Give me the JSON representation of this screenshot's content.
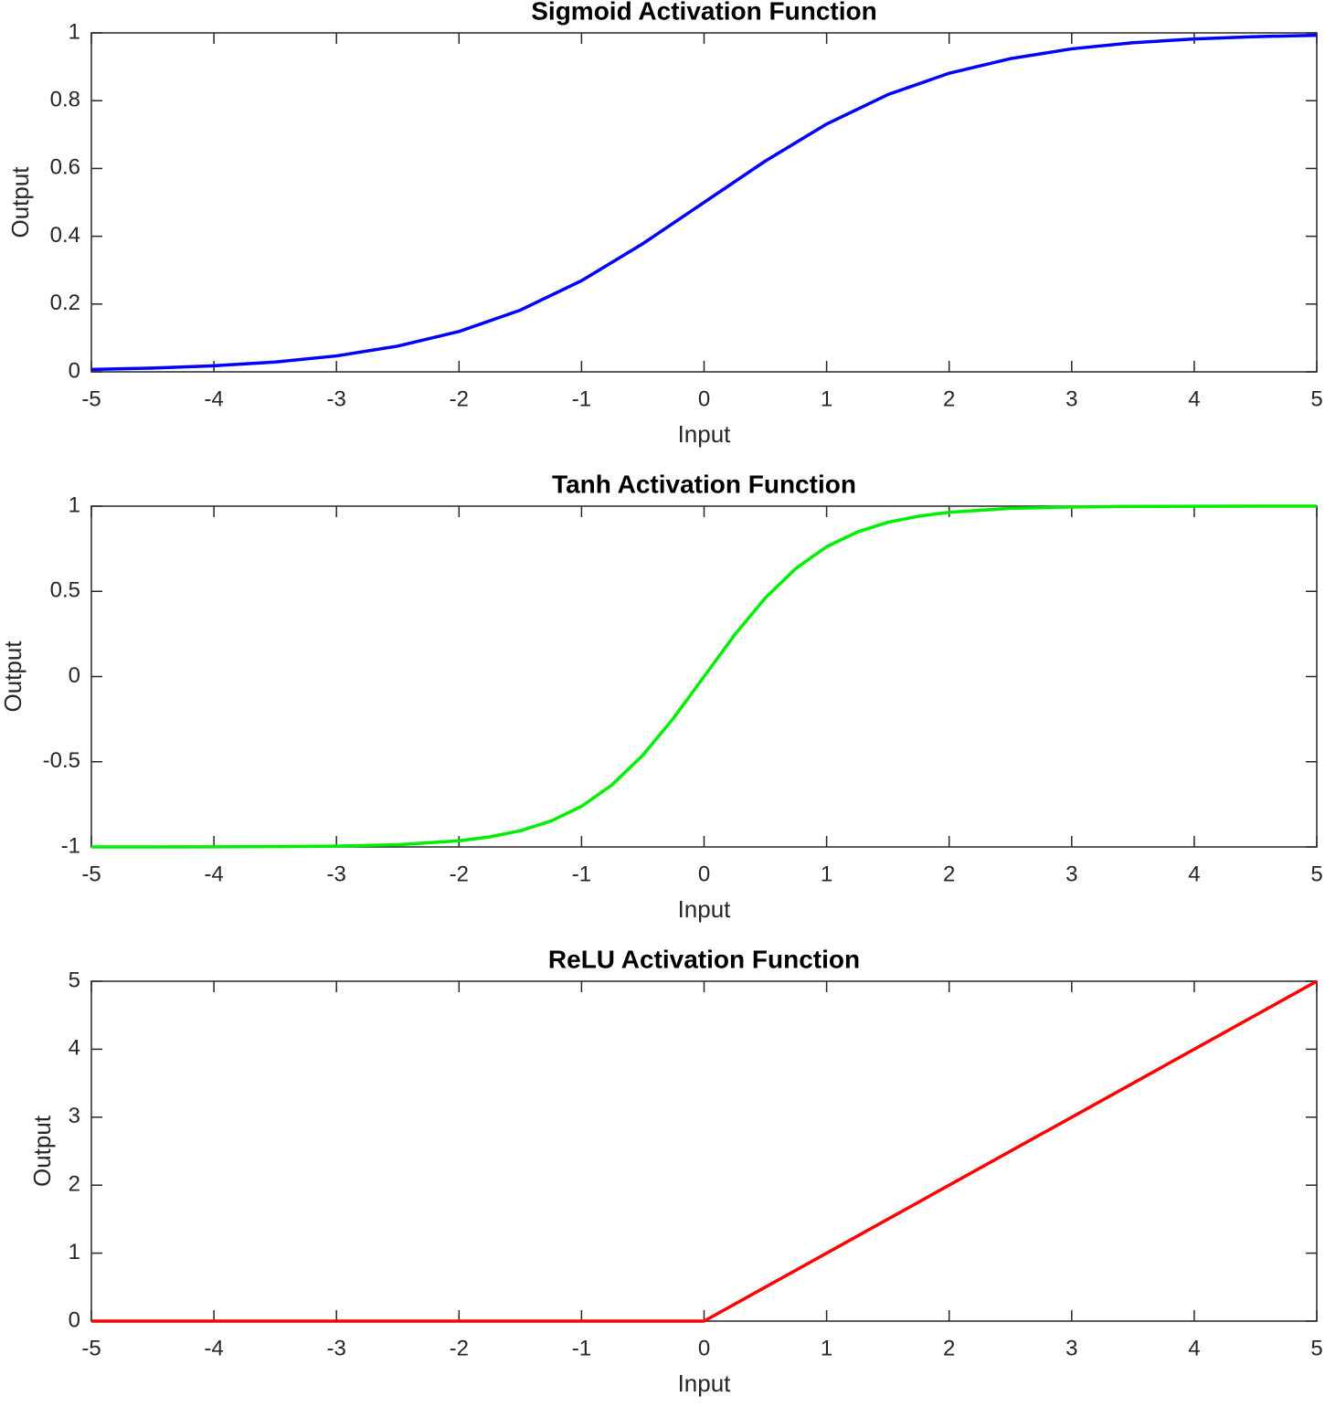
{
  "chart_data": [
    {
      "type": "line",
      "title": "Sigmoid Activation Function",
      "x_label": "Input",
      "y_label": "Output",
      "color": "#0000ff",
      "x": [
        -5,
        -4.5,
        -4,
        -3.5,
        -3,
        -2.5,
        -2,
        -1.5,
        -1,
        -0.5,
        0,
        0.5,
        1,
        1.5,
        2,
        2.5,
        3,
        3.5,
        4,
        4.5,
        5
      ],
      "values": [
        0.007,
        0.011,
        0.018,
        0.029,
        0.047,
        0.076,
        0.119,
        0.182,
        0.269,
        0.378,
        0.5,
        0.622,
        0.731,
        0.818,
        0.881,
        0.924,
        0.953,
        0.971,
        0.982,
        0.989,
        0.993
      ],
      "xlim": [
        -5,
        5
      ],
      "xticks": [
        -5,
        -4,
        -3,
        -2,
        -1,
        0,
        1,
        2,
        3,
        4,
        5
      ],
      "ylim": [
        0,
        1
      ],
      "yticks": [
        0,
        0.2,
        0.4,
        0.6,
        0.8,
        1
      ],
      "grid": false
    },
    {
      "type": "line",
      "title": "Tanh Activation Function",
      "x_label": "Input",
      "y_label": "Output",
      "color": "#00ee00",
      "x": [
        -5,
        -4.5,
        -4,
        -3.5,
        -3,
        -2.5,
        -2,
        -1.75,
        -1.5,
        -1.25,
        -1,
        -0.75,
        -0.5,
        -0.25,
        0,
        0.25,
        0.5,
        0.75,
        1,
        1.25,
        1.5,
        1.75,
        2,
        2.5,
        3,
        3.5,
        4,
        4.5,
        5
      ],
      "values": [
        -1.0,
        -1.0,
        -0.999,
        -0.998,
        -0.995,
        -0.987,
        -0.964,
        -0.941,
        -0.905,
        -0.848,
        -0.762,
        -0.635,
        -0.462,
        -0.245,
        0,
        0.245,
        0.462,
        0.635,
        0.762,
        0.848,
        0.905,
        0.941,
        0.964,
        0.987,
        0.995,
        0.998,
        0.999,
        1.0,
        1.0
      ],
      "xlim": [
        -5,
        5
      ],
      "xticks": [
        -5,
        -4,
        -3,
        -2,
        -1,
        0,
        1,
        2,
        3,
        4,
        5
      ],
      "ylim": [
        -1,
        1
      ],
      "yticks": [
        -1,
        -0.5,
        0,
        0.5,
        1
      ],
      "grid": false
    },
    {
      "type": "line",
      "title": "ReLU Activation Function",
      "x_label": "Input",
      "y_label": "Output",
      "color": "#ff0000",
      "x": [
        -5,
        0,
        5
      ],
      "values": [
        0,
        0,
        5
      ],
      "xlim": [
        -5,
        5
      ],
      "xticks": [
        -5,
        -4,
        -3,
        -2,
        -1,
        0,
        1,
        2,
        3,
        4,
        5
      ],
      "ylim": [
        0,
        5
      ],
      "yticks": [
        0,
        1,
        2,
        3,
        4,
        5
      ],
      "grid": false
    }
  ]
}
